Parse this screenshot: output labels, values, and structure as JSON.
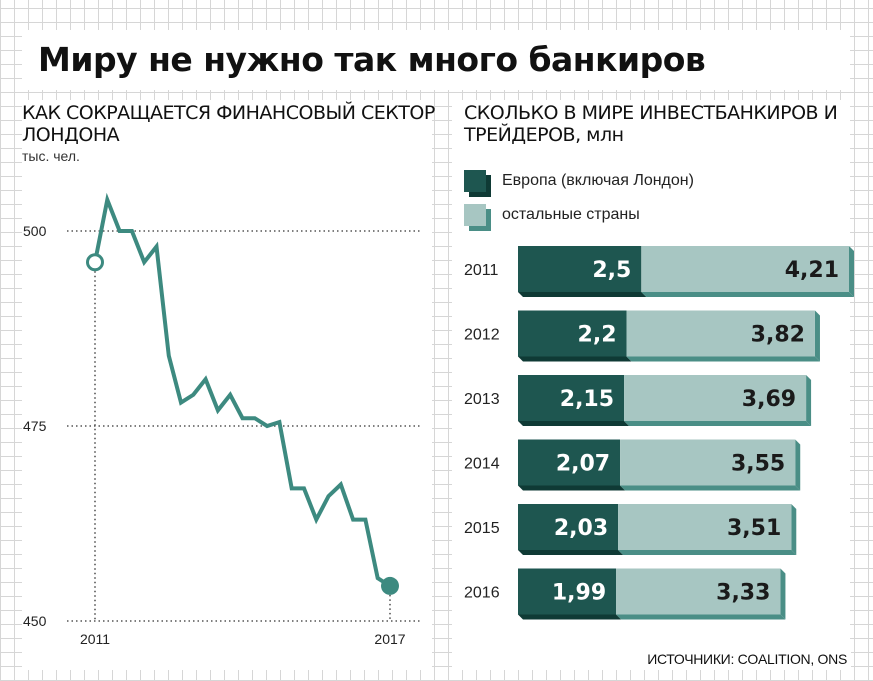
{
  "title": "Миру не нужно так много банкиров",
  "source": "ИСТОЧНИКИ: COALITION, ONS",
  "colors": {
    "line": "#3d8a80",
    "europe": "#1e5650",
    "europe_shade": "#0f3a35",
    "other": "#a7c6c2",
    "other_shade": "#4a8e86",
    "grid": "#555555"
  },
  "chart_data": [
    {
      "type": "line",
      "title": "КАК СОКРАЩАЕТСЯ ФИНАНСОВЫЙ СЕКТОР ЛОНДОНА",
      "ylabel": "тыс. чел.",
      "ylim": [
        450,
        500
      ],
      "yticks": [
        500,
        475,
        450
      ],
      "xtick_labels": [
        "2011",
        "2017"
      ],
      "xlim": [
        2011,
        2017
      ],
      "x": [
        2011.0,
        2011.25,
        2011.5,
        2011.75,
        2012.0,
        2012.25,
        2012.5,
        2012.75,
        2013.0,
        2013.25,
        2013.5,
        2013.75,
        2014.0,
        2014.25,
        2014.5,
        2014.75,
        2015.0,
        2015.25,
        2015.5,
        2015.75,
        2016.0,
        2016.25,
        2016.5,
        2016.75,
        2017.0
      ],
      "values": [
        496,
        504,
        500,
        500,
        496,
        498,
        484,
        478,
        479,
        481,
        477,
        479,
        476,
        476,
        475,
        475.5,
        467,
        467,
        463,
        466,
        467.5,
        463,
        463,
        455.5,
        454.5
      ],
      "markers": [
        "start",
        "end"
      ]
    },
    {
      "type": "bar",
      "stacked": true,
      "orientation": "horizontal",
      "title": "СКОЛЬКО В МИРЕ ИНВЕСТБАНКИРОВ И ТРЕЙДЕРОВ, млн",
      "categories": [
        "2011",
        "2012",
        "2013",
        "2014",
        "2015",
        "2016"
      ],
      "series": [
        {
          "name": "Европа (включая Лондон)",
          "values": [
            2.5,
            2.2,
            2.15,
            2.07,
            2.03,
            1.99
          ],
          "labels": [
            "2,5",
            "2,2",
            "2,15",
            "2,07",
            "2,03",
            "1,99"
          ]
        },
        {
          "name": "остальные страны",
          "values": [
            4.21,
            3.82,
            3.69,
            3.55,
            3.51,
            3.33
          ],
          "labels": [
            "4,21",
            "3,82",
            "3,69",
            "3,55",
            "3,51",
            "3,33"
          ]
        }
      ],
      "legend": "top-left"
    }
  ]
}
